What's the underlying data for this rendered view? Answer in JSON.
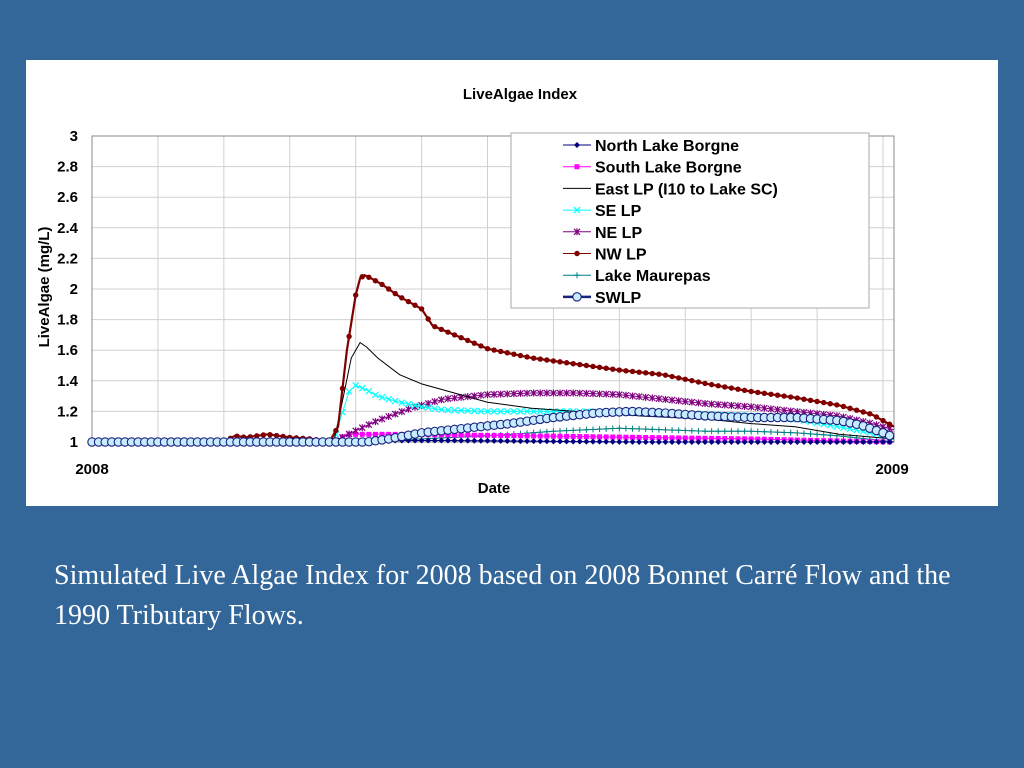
{
  "caption": "Simulated Live Algae Index for 2008 based on 2008 Bonnet Carré Flow and the 1990 Tributary Flows.",
  "chart_data": {
    "type": "line",
    "title": "LiveAlgae Index",
    "xlabel": "Date",
    "ylabel": "LiveAlgae (mg/L)",
    "x_tick_labels": [
      "2008",
      "2009"
    ],
    "xlim": [
      0,
      365
    ],
    "ylim": [
      1,
      3
    ],
    "y_ticks": [
      1,
      1.2,
      1.4,
      1.6,
      1.8,
      2,
      2.2,
      2.4,
      2.6,
      2.8,
      3
    ],
    "y_tick_labels": [
      "1",
      "1.2",
      "1.4",
      "1.6",
      "1.8",
      "2",
      "2.2",
      "2.4",
      "2.6",
      "2.8",
      "3"
    ],
    "x_unit": "day of year",
    "grid": true,
    "legend_position": "top-right",
    "series": [
      {
        "name": "North Lake Borgne",
        "color": "#000080",
        "marker": "diamond",
        "x": [
          0,
          110,
          120,
          160,
          250,
          300,
          365
        ],
        "y": [
          1.0,
          1.0,
          1.01,
          1.01,
          1.0,
          1.0,
          1.0
        ]
      },
      {
        "name": "South Lake Borgne",
        "color": "#ff00ff",
        "marker": "square",
        "x": [
          0,
          110,
          116,
          140,
          200,
          250,
          300,
          330,
          365
        ],
        "y": [
          1.0,
          1.0,
          1.05,
          1.05,
          1.04,
          1.03,
          1.02,
          1.01,
          1.0
        ]
      },
      {
        "name": "East LP (I10 to Lake SC)",
        "color": "#000000",
        "marker": "none",
        "x": [
          0,
          110,
          113,
          118,
          122,
          125,
          130,
          140,
          150,
          160,
          170,
          180,
          200,
          220,
          250,
          280,
          300,
          320,
          340,
          365
        ],
        "y": [
          1.0,
          1.0,
          1.2,
          1.55,
          1.65,
          1.62,
          1.55,
          1.44,
          1.38,
          1.34,
          1.3,
          1.26,
          1.22,
          1.2,
          1.17,
          1.15,
          1.12,
          1.1,
          1.05,
          1.02
        ]
      },
      {
        "name": "SE LP",
        "color": "#00ffff",
        "marker": "x",
        "x": [
          0,
          110,
          113,
          117,
          120,
          125,
          130,
          140,
          150,
          160,
          180,
          200,
          220,
          250,
          280,
          300,
          320,
          340,
          365
        ],
        "y": [
          1.0,
          1.0,
          1.15,
          1.33,
          1.37,
          1.34,
          1.3,
          1.26,
          1.23,
          1.21,
          1.2,
          1.2,
          1.2,
          1.19,
          1.18,
          1.17,
          1.15,
          1.1,
          1.03
        ]
      },
      {
        "name": "NE LP",
        "color": "#800080",
        "marker": "star",
        "x": [
          0,
          110,
          118,
          130,
          145,
          160,
          180,
          200,
          220,
          240,
          260,
          280,
          300,
          320,
          340,
          355,
          365
        ],
        "y": [
          1.0,
          1.0,
          1.06,
          1.14,
          1.22,
          1.28,
          1.31,
          1.32,
          1.32,
          1.31,
          1.28,
          1.25,
          1.23,
          1.2,
          1.17,
          1.12,
          1.08
        ]
      },
      {
        "name": "NW LP",
        "color": "#800000",
        "marker": "circle",
        "x": [
          0,
          60,
          65,
          70,
          80,
          90,
          100,
          108,
          112,
          116,
          120,
          122,
          124,
          127,
          132,
          140,
          150,
          155,
          160,
          170,
          180,
          200,
          220,
          240,
          260,
          280,
          300,
          320,
          340,
          355,
          365
        ],
        "y": [
          1.0,
          1.0,
          1.04,
          1.03,
          1.05,
          1.03,
          1.02,
          1.0,
          1.1,
          1.6,
          1.96,
          2.07,
          2.09,
          2.07,
          2.03,
          1.95,
          1.87,
          1.76,
          1.73,
          1.67,
          1.61,
          1.55,
          1.51,
          1.47,
          1.44,
          1.38,
          1.33,
          1.29,
          1.24,
          1.18,
          1.1
        ]
      },
      {
        "name": "Lake Maurepas",
        "color": "#008080",
        "marker": "plus",
        "x": [
          0,
          120,
          150,
          180,
          210,
          240,
          260,
          280,
          300,
          320,
          340,
          365
        ],
        "y": [
          1.0,
          1.0,
          1.02,
          1.04,
          1.07,
          1.09,
          1.08,
          1.07,
          1.07,
          1.06,
          1.04,
          1.0
        ]
      },
      {
        "name": "SWLP",
        "color": "#1a237e",
        "fill": "#c8ecff",
        "marker": "open-circle",
        "x": [
          0,
          118,
          125,
          135,
          150,
          170,
          190,
          210,
          230,
          245,
          260,
          280,
          300,
          320,
          340,
          350,
          360,
          365
        ],
        "y": [
          1.0,
          1.0,
          1.0,
          1.02,
          1.06,
          1.09,
          1.12,
          1.16,
          1.19,
          1.2,
          1.19,
          1.17,
          1.16,
          1.16,
          1.14,
          1.11,
          1.06,
          1.03
        ]
      }
    ]
  }
}
